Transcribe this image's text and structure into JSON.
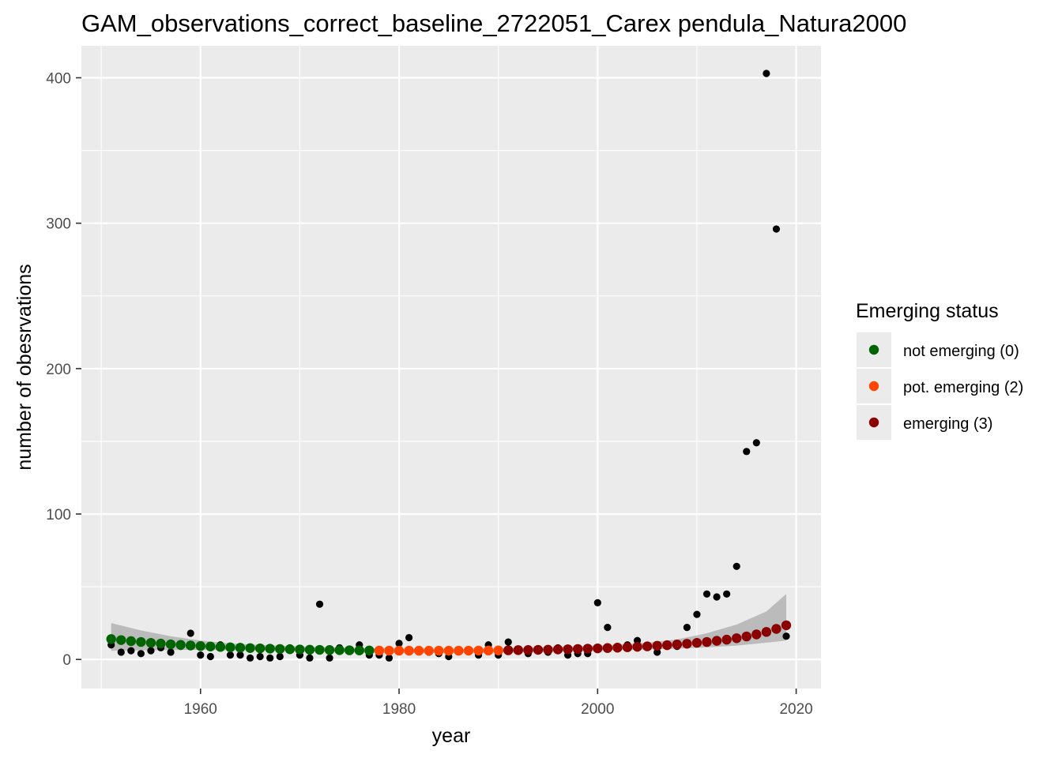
{
  "chart_data": {
    "type": "scatter",
    "title": "GAM_observations_correct_baseline_2722051_Carex pendula_Natura2000",
    "xlabel": "year",
    "ylabel": "number of obesrvations",
    "xlim": [
      1948,
      2022.5
    ],
    "ylim": [
      -20,
      422
    ],
    "x_ticks": [
      1960,
      1980,
      2000,
      2020
    ],
    "y_ticks": [
      0,
      100,
      200,
      300,
      400
    ],
    "grid": true,
    "legend": {
      "title": "Emerging status",
      "placement": "right",
      "entries": [
        {
          "label": "not emerging (0)",
          "color": "#006400"
        },
        {
          "label": "pot. emerging (2)",
          "color": "#FF4500"
        },
        {
          "label": "emerging (3)",
          "color": "#8B0000"
        }
      ]
    },
    "colors": {
      "panel": "#EBEBEB",
      "grid": "#FFFFFF",
      "observed": "#000000",
      "ribbon": "#B3B3B3"
    },
    "observed": {
      "x": [
        1951,
        1952,
        1953,
        1954,
        1955,
        1956,
        1957,
        1958,
        1959,
        1960,
        1961,
        1962,
        1963,
        1964,
        1965,
        1966,
        1967,
        1968,
        1969,
        1970,
        1971,
        1972,
        1973,
        1974,
        1975,
        1976,
        1977,
        1978,
        1979,
        1980,
        1981,
        1982,
        1983,
        1984,
        1985,
        1986,
        1987,
        1988,
        1989,
        1990,
        1991,
        1992,
        1993,
        1994,
        1995,
        1996,
        1997,
        1998,
        1999,
        2000,
        2001,
        2002,
        2003,
        2004,
        2005,
        2006,
        2007,
        2008,
        2009,
        2010,
        2011,
        2012,
        2013,
        2014,
        2015,
        2016,
        2017,
        2018,
        2019
      ],
      "y": [
        10,
        5,
        6,
        4,
        6,
        8,
        5,
        9,
        18,
        3,
        2,
        10,
        3,
        3,
        1,
        2,
        1,
        2,
        8,
        3,
        1,
        38,
        1,
        8,
        7,
        10,
        3,
        3,
        1,
        11,
        15,
        6,
        5,
        4,
        2,
        6,
        6,
        3,
        10,
        3,
        12,
        6,
        4,
        6,
        5,
        8,
        3,
        4,
        4,
        39,
        22,
        8,
        10,
        13,
        9,
        5,
        10,
        9,
        22,
        31,
        45,
        43,
        45,
        64,
        143,
        149,
        403,
        296,
        16
      ]
    },
    "fitted": {
      "x": [
        1951,
        1952,
        1953,
        1954,
        1955,
        1956,
        1957,
        1958,
        1959,
        1960,
        1961,
        1962,
        1963,
        1964,
        1965,
        1966,
        1967,
        1968,
        1969,
        1970,
        1971,
        1972,
        1973,
        1974,
        1975,
        1976,
        1977,
        1978,
        1979,
        1980,
        1981,
        1982,
        1983,
        1984,
        1985,
        1986,
        1987,
        1988,
        1989,
        1990,
        1991,
        1992,
        1993,
        1994,
        1995,
        1996,
        1997,
        1998,
        1999,
        2000,
        2001,
        2002,
        2003,
        2004,
        2005,
        2006,
        2007,
        2008,
        2009,
        2010,
        2011,
        2012,
        2013,
        2014,
        2015,
        2016,
        2017,
        2018,
        2019
      ],
      "y": [
        14,
        13.3,
        12.6,
        12,
        11.4,
        10.9,
        10.4,
        10,
        9.6,
        9.2,
        8.9,
        8.6,
        8.3,
        8.05,
        7.8,
        7.6,
        7.4,
        7.2,
        7,
        6.85,
        6.7,
        6.6,
        6.5,
        6.4,
        6.3,
        6.2,
        6.15,
        6.1,
        6.05,
        6.0,
        6.0,
        6.0,
        6.0,
        6.0,
        6.0,
        6.0,
        6.05,
        6.1,
        6.15,
        6.2,
        6.3,
        6.4,
        6.5,
        6.6,
        6.7,
        6.85,
        7.0,
        7.2,
        7.4,
        7.6,
        7.85,
        8.1,
        8.4,
        8.7,
        9.0,
        9.4,
        9.8,
        10.3,
        10.8,
        11.4,
        12.0,
        12.8,
        13.6,
        14.6,
        15.8,
        17.2,
        18.9,
        21,
        23.5
      ],
      "status": [
        0,
        0,
        0,
        0,
        0,
        0,
        0,
        0,
        0,
        0,
        0,
        0,
        0,
        0,
        0,
        0,
        0,
        0,
        0,
        0,
        0,
        0,
        0,
        0,
        0,
        0,
        0,
        2,
        2,
        2,
        2,
        2,
        2,
        2,
        2,
        2,
        2,
        2,
        2,
        2,
        3,
        3,
        3,
        3,
        3,
        3,
        3,
        3,
        3,
        3,
        3,
        3,
        3,
        3,
        3,
        3,
        3,
        3,
        3,
        3,
        3,
        3,
        3,
        3,
        3,
        3,
        3,
        3,
        3
      ]
    },
    "ribbon": {
      "x": [
        1951,
        1954,
        1957,
        1960,
        1963,
        1966,
        1969,
        1972,
        1975,
        1978,
        1981,
        1984,
        1987,
        1990,
        1993,
        1996,
        1999,
        2002,
        2005,
        2008,
        2011,
        2014,
        2017,
        2019
      ],
      "lower": [
        6,
        6.3,
        6.5,
        6.6,
        6.5,
        6.2,
        5.8,
        5.3,
        4.9,
        4.6,
        4.5,
        4.5,
        4.6,
        4.8,
        5.1,
        5.5,
        5.9,
        6.4,
        6.9,
        7.4,
        8.3,
        9.5,
        11.5,
        13
      ],
      "upper": [
        25,
        20,
        16,
        13,
        11,
        10,
        9.2,
        8.5,
        8,
        7.6,
        7.3,
        7.2,
        7.3,
        7.6,
        8,
        8.6,
        9.3,
        10.2,
        11.5,
        13.8,
        18,
        24,
        33,
        45
      ]
    }
  }
}
